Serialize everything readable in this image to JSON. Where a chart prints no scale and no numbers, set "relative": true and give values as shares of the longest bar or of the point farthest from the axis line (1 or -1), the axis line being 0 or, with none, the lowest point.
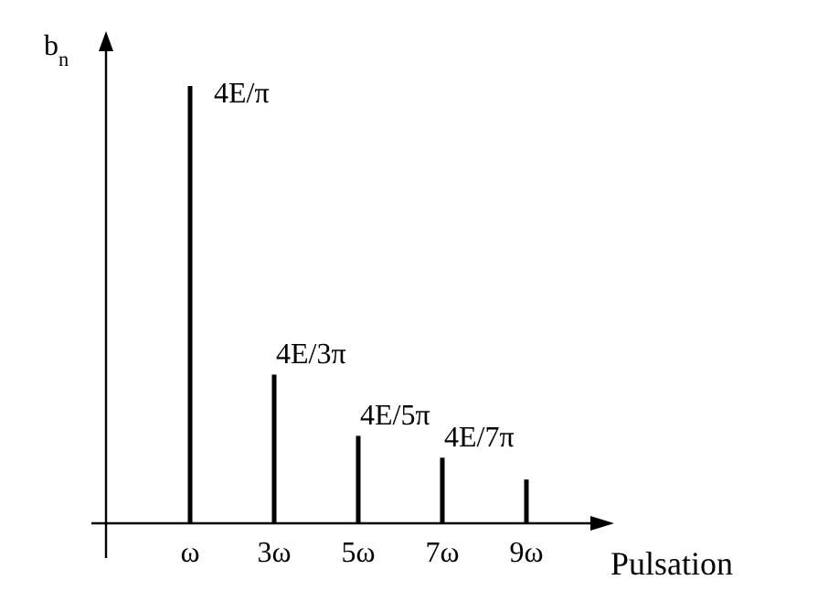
{
  "chart_data": {
    "type": "bar",
    "relative": true,
    "ylabel": "b$_{n}$",
    "xlabel": "Pulsation",
    "categories": [
      "ω",
      "3ω",
      "5ω",
      "7ω",
      "9ω"
    ],
    "values": [
      1,
      0.34,
      0.2,
      0.15,
      0.1
    ],
    "annotations": [
      {
        "text": "4E/π",
        "x": "ω",
        "y": 1
      },
      {
        "text": "4E/3π",
        "x": "3ω",
        "y": 0.34
      },
      {
        "text": "4E/5π",
        "x": "5ω",
        "y": 0.2
      },
      {
        "text": "4E/7π",
        "x": "7ω",
        "y": 0.15
      }
    ],
    "color": "#000000"
  }
}
